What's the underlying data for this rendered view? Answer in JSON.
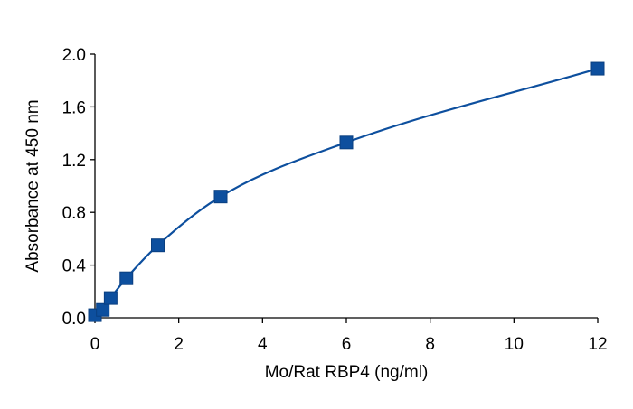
{
  "chart_data": {
    "type": "scatter",
    "title": "",
    "xlabel": "Mo/Rat RBP4 (ng/ml)",
    "ylabel": "Absorbance at 450 nm",
    "xlim": [
      0,
      12
    ],
    "ylim": [
      0,
      2.0
    ],
    "x_ticks": [
      "0",
      "2",
      "4",
      "6",
      "8",
      "10",
      "12"
    ],
    "y_ticks": [
      "0.0",
      "0.4",
      "0.8",
      "1.2",
      "1.6",
      "2.0"
    ],
    "grid": false,
    "legend": "none",
    "series": [
      {
        "marker": "square",
        "color": "#0d4f9e",
        "fit": "smooth-curve",
        "x": [
          0,
          0.1875,
          0.375,
          0.75,
          1.5,
          3,
          6,
          12
        ],
        "y": [
          0.02,
          0.06,
          0.15,
          0.3,
          0.55,
          0.92,
          1.33,
          1.89
        ]
      }
    ]
  }
}
